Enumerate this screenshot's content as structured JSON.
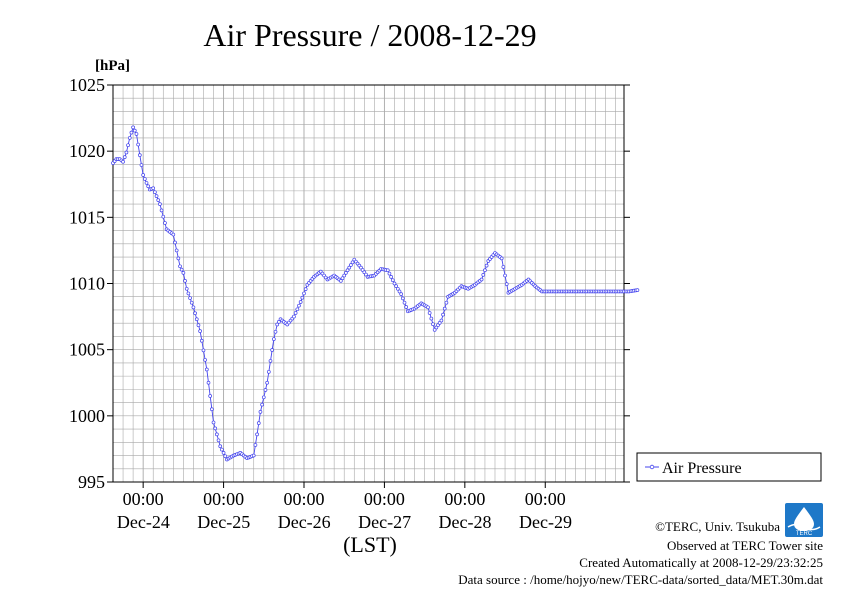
{
  "colors": {
    "series": "#4444ee",
    "grid": "#a8a8a8",
    "axis": "#000000",
    "logo": "#1e78c8"
  },
  "logo_text": "TERC",
  "chart_data": {
    "type": "line",
    "title": "Air Pressure / 2008-12-29",
    "ylabel": "[hPa]",
    "xlabel": "(LST)",
    "ylim": [
      995,
      1025
    ],
    "xlim": [
      "2008-12-23 15:00",
      "2008-12-29 23:30"
    ],
    "yticks": [
      "995",
      "1000",
      "1005",
      "1010",
      "1015",
      "1020",
      "1025"
    ],
    "xticks": [
      {
        "time": "00:00",
        "date": "Dec-24"
      },
      {
        "time": "00:00",
        "date": "Dec-25"
      },
      {
        "time": "00:00",
        "date": "Dec-26"
      },
      {
        "time": "00:00",
        "date": "Dec-27"
      },
      {
        "time": "00:00",
        "date": "Dec-28"
      },
      {
        "time": "00:00",
        "date": "Dec-29"
      }
    ],
    "grid": true,
    "legend": "right",
    "series": [
      {
        "name": "Air Pressure",
        "x_start": "2008-12-23 15:00",
        "interval_minutes": 30,
        "anchor_hours": [
          0,
          1,
          2,
          3,
          4,
          5,
          6,
          7,
          8,
          9,
          10,
          11,
          12,
          14,
          16,
          18,
          20,
          21,
          22,
          24,
          25,
          26,
          28,
          30,
          32,
          34,
          36,
          38,
          40,
          42,
          43,
          44,
          46,
          48,
          49,
          50,
          52,
          54,
          56,
          58,
          60,
          62,
          64,
          66,
          68,
          70,
          72,
          74,
          76,
          78,
          80,
          82,
          84,
          86,
          88,
          90,
          92,
          94,
          96,
          98,
          100,
          102,
          104,
          106,
          108,
          110,
          112,
          114,
          116,
          118,
          120,
          122,
          124,
          126,
          128,
          130,
          132,
          134,
          136,
          138,
          140,
          142,
          144,
          145,
          146,
          148,
          150,
          152,
          154,
          156.5
        ],
        "anchor_values": [
          1019.1,
          1019.4,
          1019.4,
          1019.2,
          1019.9,
          1021.0,
          1021.8,
          1021.3,
          1019.7,
          1018.2,
          1017.6,
          1017.1,
          1017.2,
          1016.0,
          1014.1,
          1013.7,
          1011.3,
          1010.8,
          1009.6,
          1008.2,
          1007.3,
          1006.4,
          1003.5,
          999.5,
          997.7,
          996.7,
          997.0,
          997.2,
          996.8,
          997.0,
          998.6,
          1000.3,
          1002.5,
          1005.8,
          1006.9,
          1007.3,
          1006.9,
          1007.5,
          1008.6,
          1009.9,
          1010.5,
          1010.9,
          1010.3,
          1010.6,
          1010.2,
          1011.0,
          1011.8,
          1011.2,
          1010.5,
          1010.6,
          1011.1,
          1011.0,
          1010.0,
          1009.2,
          1007.9,
          1008.1,
          1008.5,
          1008.2,
          1006.5,
          1007.2,
          1009.0,
          1009.3,
          1009.8,
          1009.6,
          1009.9,
          1010.3,
          1011.7,
          1012.3,
          1011.9,
          1009.3,
          1009.6,
          1009.9,
          1010.3,
          1009.8,
          1009.4,
          1009.4,
          1009.4,
          1009.4,
          1009.4,
          1009.4,
          1009.4,
          1009.4,
          1009.4,
          1009.4,
          1009.4,
          1009.4,
          1009.4,
          1009.4,
          1009.4,
          1009.5
        ]
      }
    ]
  },
  "footer": {
    "copyright": "©TERC, Univ. Tsukuba",
    "observed": "Observed at TERC Tower site",
    "created": "Created Automatically at 2008-12-29/23:32:25",
    "source": "Data source : /home/hojyo/new/TERC-data/sorted_data/MET.30m.dat"
  }
}
